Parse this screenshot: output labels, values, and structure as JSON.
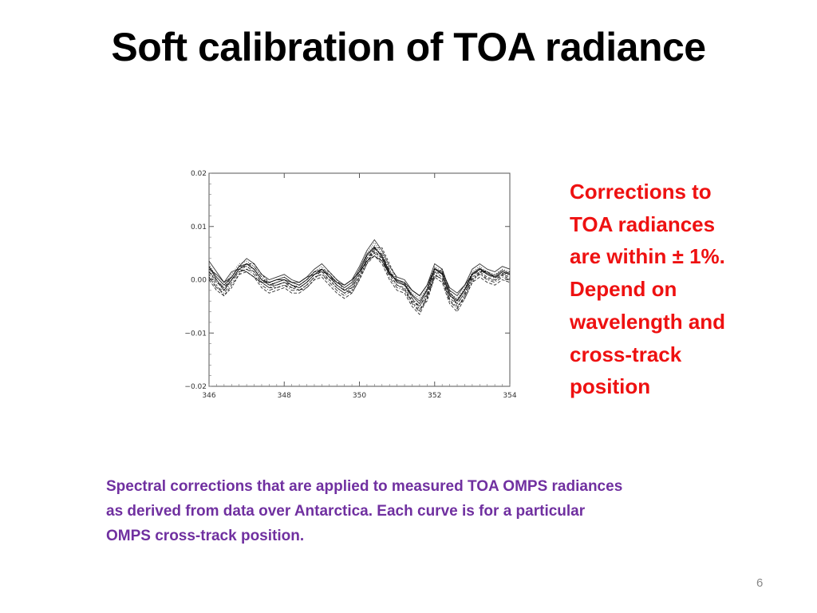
{
  "title": "Soft calibration of TOA radiance",
  "callout": {
    "lines": [
      "Corrections to",
      "TOA radiances",
      "are within ± 1%.",
      "Depend on",
      "wavelength and",
      "cross-track",
      "position"
    ]
  },
  "caption": {
    "lines": [
      "Spectral corrections that are applied to measured TOA OMPS radiances",
      "as derived from data over Antarctica. Each curve is for a particular",
      "OMPS cross-track position."
    ]
  },
  "page_number": "6",
  "colors": {
    "callout": "#ee1111",
    "caption": "#7030a0",
    "curves": "#000000"
  },
  "chart_data": {
    "type": "line",
    "title": "",
    "xlabel": "",
    "ylabel": "",
    "xlim": [
      346,
      354
    ],
    "ylim": [
      -0.02,
      0.02
    ],
    "xticks": [
      346,
      348,
      350,
      352,
      354
    ],
    "xtick_labels": [
      "346",
      "348",
      "350",
      "352",
      "354"
    ],
    "yticks": [
      0.02,
      0.01,
      0.0,
      -0.01,
      -0.02
    ],
    "ytick_labels": [
      "0.02",
      "0.01",
      "0.00",
      "−0.01",
      "−0.02"
    ],
    "grid": false,
    "legend": "none",
    "x": [
      346.0,
      346.2,
      346.4,
      346.6,
      346.8,
      347.0,
      347.2,
      347.4,
      347.6,
      347.8,
      348.0,
      348.2,
      348.4,
      348.6,
      348.8,
      349.0,
      349.2,
      349.4,
      349.6,
      349.8,
      350.0,
      350.2,
      350.4,
      350.6,
      350.8,
      351.0,
      351.2,
      351.4,
      351.6,
      351.8,
      352.0,
      352.2,
      352.4,
      352.6,
      352.8,
      353.0,
      353.2,
      353.4,
      353.6,
      353.8,
      354.0
    ],
    "series": [
      {
        "values": [
          0.0025,
          0.0,
          -0.002,
          0.0,
          0.002,
          0.003,
          0.002,
          0.0,
          -0.001,
          -0.0005,
          0.0,
          -0.001,
          -0.0015,
          -0.0005,
          0.001,
          0.002,
          0.0005,
          -0.001,
          -0.002,
          -0.001,
          0.0015,
          0.0045,
          0.006,
          0.0045,
          0.0015,
          -0.0005,
          -0.001,
          -0.003,
          -0.0045,
          -0.002,
          0.002,
          0.001,
          -0.003,
          -0.004,
          -0.002,
          0.001,
          0.002,
          0.001,
          0.0005,
          0.0015,
          0.001
        ]
      },
      {
        "values": [
          0.0015,
          -0.0005,
          -0.0015,
          0.0005,
          0.0025,
          0.0025,
          0.0015,
          -0.0005,
          -0.0015,
          -0.001,
          -0.0005,
          -0.0015,
          -0.001,
          0.0,
          0.0015,
          0.0015,
          0.0,
          -0.0015,
          -0.0025,
          -0.0015,
          0.001,
          0.004,
          0.0055,
          0.004,
          0.001,
          -0.001,
          -0.0015,
          -0.004,
          -0.005,
          -0.0025,
          0.0015,
          0.0005,
          -0.0035,
          -0.0045,
          -0.0025,
          0.0005,
          0.0015,
          0.0005,
          0.0,
          0.001,
          0.0005
        ]
      },
      {
        "values": [
          0.003,
          0.0005,
          -0.001,
          0.001,
          0.003,
          0.0035,
          0.0025,
          0.0005,
          -0.0005,
          0.0,
          0.0005,
          -0.0005,
          -0.001,
          0.0,
          0.0015,
          0.0025,
          0.001,
          -0.0005,
          -0.0015,
          -0.0005,
          0.002,
          0.005,
          0.007,
          0.005,
          0.002,
          0.0,
          -0.0005,
          -0.0025,
          -0.0035,
          -0.0015,
          0.0025,
          0.0015,
          -0.0025,
          -0.0035,
          -0.0015,
          0.0015,
          0.0025,
          0.0015,
          0.001,
          0.002,
          0.0015
        ]
      },
      {
        "values": [
          0.0005,
          -0.0015,
          -0.0025,
          -0.0005,
          0.0015,
          0.002,
          0.001,
          -0.001,
          -0.002,
          -0.0015,
          -0.001,
          -0.002,
          -0.002,
          -0.001,
          0.0005,
          0.001,
          -0.0005,
          -0.002,
          -0.003,
          -0.002,
          0.0005,
          0.0035,
          0.005,
          0.0035,
          0.0005,
          -0.0015,
          -0.002,
          -0.0045,
          -0.006,
          -0.003,
          0.001,
          0.0,
          -0.004,
          -0.0055,
          -0.003,
          0.0,
          0.001,
          0.0,
          -0.0005,
          0.0005,
          0.0
        ]
      },
      {
        "values": [
          0.002,
          0.001,
          -0.0005,
          0.0015,
          0.002,
          0.0015,
          0.0005,
          -0.0005,
          -0.0005,
          0.0,
          0.0,
          -0.0005,
          -0.0005,
          0.0005,
          0.001,
          0.0015,
          0.001,
          -0.0005,
          -0.001,
          0.0,
          0.0015,
          0.0035,
          0.0045,
          0.0035,
          0.001,
          0.0,
          -0.0005,
          -0.002,
          -0.003,
          -0.001,
          0.002,
          0.0015,
          -0.0015,
          -0.0025,
          -0.001,
          0.001,
          0.002,
          0.0015,
          0.0005,
          0.0015,
          0.001
        ]
      },
      {
        "values": [
          0.001,
          -0.001,
          -0.003,
          -0.0015,
          0.001,
          0.003,
          0.003,
          0.001,
          -0.0005,
          -0.001,
          -0.0005,
          -0.001,
          -0.002,
          -0.0015,
          0.0,
          0.002,
          0.0015,
          0.0,
          -0.002,
          -0.0025,
          0.0,
          0.003,
          0.006,
          0.006,
          0.003,
          0.0,
          -0.0005,
          -0.0035,
          -0.0055,
          -0.004,
          0.0005,
          0.002,
          -0.002,
          -0.005,
          -0.0035,
          -0.0005,
          0.0015,
          0.0015,
          0.0005,
          0.001,
          0.0015
        ]
      },
      {
        "values": [
          0.0035,
          0.0015,
          -0.0005,
          0.0005,
          0.0025,
          0.004,
          0.003,
          0.001,
          0.0,
          0.0005,
          0.001,
          0.0,
          -0.0005,
          0.0005,
          0.002,
          0.003,
          0.0015,
          0.0,
          -0.001,
          0.0,
          0.0025,
          0.0055,
          0.0075,
          0.0055,
          0.0025,
          0.0005,
          0.0,
          -0.002,
          -0.003,
          -0.001,
          0.003,
          0.002,
          -0.002,
          -0.003,
          -0.001,
          0.002,
          0.003,
          0.002,
          0.0015,
          0.0025,
          0.002
        ]
      },
      {
        "values": [
          0.0,
          -0.002,
          -0.003,
          -0.001,
          0.001,
          0.0015,
          0.0005,
          -0.0015,
          -0.0025,
          -0.002,
          -0.0015,
          -0.0025,
          -0.0025,
          -0.0015,
          0.0,
          0.0005,
          -0.001,
          -0.0025,
          -0.0035,
          -0.0025,
          0.0,
          0.003,
          0.0045,
          0.003,
          0.0,
          -0.002,
          -0.0025,
          -0.005,
          -0.0065,
          -0.0035,
          0.0005,
          -0.0005,
          -0.0045,
          -0.006,
          -0.0035,
          -0.0005,
          0.0005,
          -0.0005,
          -0.001,
          0.0,
          -0.0005
        ]
      },
      {
        "values": [
          0.002,
          -0.0005,
          -0.002,
          0.0,
          0.002,
          0.0025,
          0.002,
          0.0,
          -0.001,
          -0.0005,
          0.0,
          -0.001,
          -0.0015,
          -0.0005,
          0.001,
          0.002,
          0.0005,
          -0.001,
          -0.002,
          -0.001,
          0.0015,
          0.0045,
          0.0065,
          0.0045,
          0.0015,
          -0.0005,
          -0.001,
          -0.003,
          -0.0045,
          -0.002,
          0.002,
          0.001,
          -0.003,
          -0.004,
          -0.002,
          0.001,
          0.002,
          0.001,
          0.0005,
          0.0015,
          0.001
        ]
      },
      {
        "values": [
          0.0015,
          0.0,
          -0.0015,
          0.0,
          0.002,
          0.003,
          0.0025,
          0.0005,
          -0.001,
          -0.001,
          -0.0005,
          -0.001,
          -0.0015,
          -0.0005,
          0.001,
          0.002,
          0.001,
          -0.001,
          -0.002,
          -0.0015,
          0.001,
          0.004,
          0.0058,
          0.0048,
          0.0018,
          -0.0005,
          -0.001,
          -0.0035,
          -0.005,
          -0.0028,
          0.0015,
          0.0012,
          -0.0028,
          -0.0045,
          -0.0025,
          0.0008,
          0.0018,
          0.001,
          0.0003,
          0.0012,
          0.0008
        ]
      },
      {
        "values": [
          0.0025,
          0.0005,
          -0.001,
          0.0005,
          0.0025,
          0.003,
          0.002,
          0.0,
          -0.0005,
          0.0,
          0.0005,
          -0.0005,
          -0.001,
          0.0,
          0.0015,
          0.002,
          0.0005,
          -0.0005,
          -0.0015,
          -0.0005,
          0.002,
          0.0048,
          0.0062,
          0.0042,
          0.0012,
          -0.0002,
          -0.0008,
          -0.0028,
          -0.004,
          -0.0018,
          0.0022,
          0.0012,
          -0.0025,
          -0.0038,
          -0.0018,
          0.0012,
          0.0022,
          0.0012,
          0.0008,
          0.0018,
          0.0012
        ]
      },
      {
        "values": [
          0.0005,
          -0.0015,
          -0.002,
          0.0,
          0.0015,
          0.002,
          0.0015,
          -0.0005,
          -0.0015,
          -0.0015,
          -0.001,
          -0.0015,
          -0.002,
          -0.001,
          0.0005,
          0.001,
          0.0,
          -0.0015,
          -0.0025,
          -0.002,
          0.0005,
          0.0035,
          0.0052,
          0.004,
          0.001,
          -0.001,
          -0.0018,
          -0.0042,
          -0.0058,
          -0.0032,
          0.0008,
          0.0002,
          -0.0038,
          -0.0052,
          -0.003,
          0.0002,
          0.0012,
          0.0002,
          -0.0002,
          0.0008,
          0.0002
        ]
      }
    ]
  }
}
